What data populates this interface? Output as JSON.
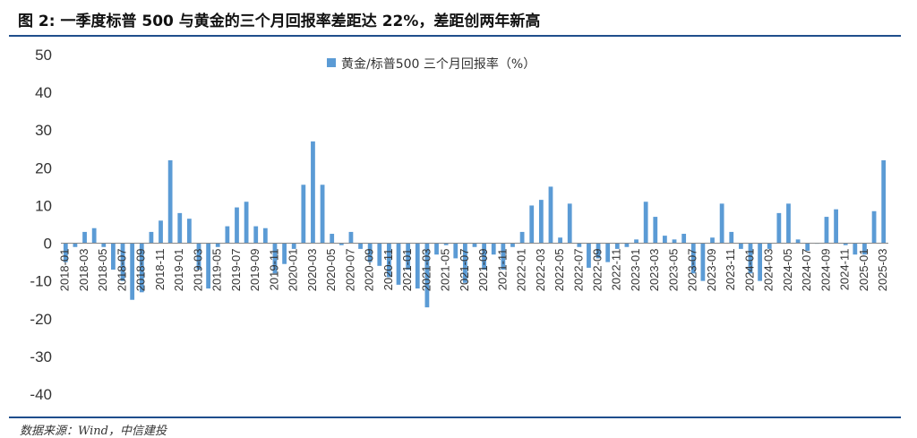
{
  "header": {
    "title": "图 2:  一季度标普 500 与黄金的三个月回报率差距达 22%，差距创两年新高"
  },
  "footer": {
    "source": "数据来源：Wind，中信建投"
  },
  "chart_data": {
    "type": "bar",
    "title": "",
    "xlabel": "",
    "ylabel": "",
    "ylim": [
      -40,
      50
    ],
    "yticks": [
      -40,
      -30,
      -20,
      -10,
      0,
      10,
      20,
      30,
      40,
      50
    ],
    "grid": false,
    "legend_position": "top-center",
    "bar_color": "#5b9bd5",
    "categories": [
      "2018-01",
      "2018-02",
      "2018-03",
      "2018-04",
      "2018-05",
      "2018-06",
      "2018-07",
      "2018-08",
      "2018-09",
      "2018-10",
      "2018-11",
      "2018-12",
      "2019-01",
      "2019-02",
      "2019-03",
      "2019-04",
      "2019-05",
      "2019-06",
      "2019-07",
      "2019-08",
      "2019-09",
      "2019-10",
      "2019-11",
      "2019-12",
      "2020-01",
      "2020-02",
      "2020-03",
      "2020-04",
      "2020-05",
      "2020-06",
      "2020-07",
      "2020-08",
      "2020-09",
      "2020-10",
      "2020-11",
      "2020-12",
      "2021-01",
      "2021-02",
      "2021-03",
      "2021-04",
      "2021-05",
      "2021-06",
      "2021-07",
      "2021-08",
      "2021-09",
      "2021-10",
      "2021-11",
      "2021-12",
      "2022-01",
      "2022-02",
      "2022-03",
      "2022-04",
      "2022-05",
      "2022-06",
      "2022-07",
      "2022-08",
      "2022-09",
      "2022-10",
      "2022-11",
      "2022-12",
      "2023-01",
      "2023-02",
      "2023-03",
      "2023-04",
      "2023-05",
      "2023-06",
      "2023-07",
      "2023-08",
      "2023-09",
      "2023-10",
      "2023-11",
      "2023-12",
      "2024-01",
      "2024-02",
      "2024-03",
      "2024-04",
      "2024-05",
      "2024-06",
      "2024-07",
      "2024-08",
      "2024-09",
      "2024-10",
      "2024-11",
      "2024-12",
      "2025-01",
      "2025-02",
      "2025-03"
    ],
    "tick_labels": [
      "2018-01",
      "2018-03",
      "2018-05",
      "2018-07",
      "2018-09",
      "2018-11",
      "2019-01",
      "2019-03",
      "2019-05",
      "2019-07",
      "2019-09",
      "2019-11",
      "2020-01",
      "2020-03",
      "2020-05",
      "2020-07",
      "2020-09",
      "2020-11",
      "2021-01",
      "2021-03",
      "2021-05",
      "2021-07",
      "2021-09",
      "2021-11",
      "2022-01",
      "2022-03",
      "2022-05",
      "2022-07",
      "2022-09",
      "2022-11",
      "2023-01",
      "2023-03",
      "2023-05",
      "2023-07",
      "2023-09",
      "2023-11",
      "2024-01",
      "2024-03",
      "2024-05",
      "2024-07",
      "2024-09",
      "2024-11",
      "2025-01",
      "2025-03"
    ],
    "series": [
      {
        "name": "黄金/标普500  三个月回报率（%）",
        "values": [
          -5,
          -1,
          3,
          4,
          -1,
          -7,
          -10,
          -15,
          -13,
          3,
          6,
          22,
          8,
          6.5,
          -7,
          -12,
          -1,
          4.5,
          9.5,
          11,
          4.5,
          4,
          -8,
          -5.5,
          -1.5,
          15.5,
          27,
          15.5,
          2.5,
          -0.5,
          3,
          -1.5,
          -5,
          -6,
          -9,
          -11,
          -7,
          -12,
          -17,
          -3,
          -0.5,
          -4,
          -10.5,
          -1,
          -7,
          -3,
          -7,
          -1,
          3,
          10,
          11.5,
          15,
          1.5,
          10.5,
          -1,
          -6.5,
          -4,
          -5,
          -1.5,
          -1,
          1,
          11,
          7,
          2,
          1,
          2.5,
          -8,
          -10,
          1.5,
          10.5,
          3,
          -1.5,
          -8,
          -10,
          -1.5,
          8,
          10.5,
          1,
          -2,
          0,
          7,
          9,
          -0.5,
          -3,
          -3,
          8.5,
          22
        ]
      }
    ]
  }
}
